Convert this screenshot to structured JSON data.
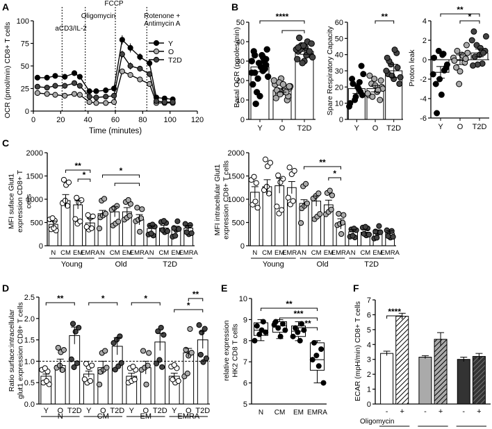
{
  "panel_labels": [
    "A",
    "B",
    "C",
    "D",
    "E",
    "F"
  ],
  "chart_data": [
    {
      "id": "A",
      "type": "line",
      "xlabel": "Time (minutes)",
      "ylabel": "OCR (pmol/min) CD8+ T cells",
      "xlim": [
        0,
        120
      ],
      "ylim": [
        0,
        100
      ],
      "xticks": [
        "0",
        "20",
        "40",
        "60",
        "80",
        "100",
        "120"
      ],
      "yticks": [
        "0",
        "25",
        "50",
        "75",
        "100"
      ],
      "injections": [
        {
          "x": 21,
          "label": "aCD3/IL-2"
        },
        {
          "x": 38,
          "label": "Oligomycin"
        },
        {
          "x": 60,
          "label": "FCCP"
        },
        {
          "x": 83,
          "label": "Rotenone + Antimycin A"
        }
      ],
      "x": [
        3,
        10,
        16,
        23,
        30,
        34,
        41,
        46,
        53,
        59,
        65,
        71,
        78,
        85,
        90,
        96,
        102
      ],
      "series": [
        {
          "name": "Y",
          "fill": "#000000",
          "values": [
            37,
            37,
            39,
            38,
            42,
            38,
            22,
            22,
            23,
            25,
            79,
            70,
            60,
            53,
            15,
            14,
            13
          ],
          "err": [
            3,
            3,
            3,
            3,
            3,
            3,
            2,
            2,
            2,
            2,
            5,
            5,
            4,
            4,
            2,
            2,
            2
          ]
        },
        {
          "name": "O",
          "fill": "#aaaaaa",
          "values": [
            20,
            19,
            18,
            17,
            19,
            18,
            10,
            9,
            9,
            10,
            44,
            40,
            35,
            30,
            9,
            9,
            9
          ],
          "err": [
            2,
            2,
            2,
            2,
            2,
            2,
            1,
            1,
            1,
            1,
            3,
            3,
            3,
            2,
            1,
            1,
            1
          ]
        },
        {
          "name": "T2D",
          "fill": "#444444",
          "values": [
            27,
            26,
            28,
            28,
            31,
            28,
            16,
            15,
            16,
            17,
            63,
            50,
            47,
            41,
            11,
            10,
            10
          ],
          "err": [
            3,
            3,
            3,
            3,
            3,
            3,
            2,
            2,
            2,
            2,
            4,
            4,
            3,
            3,
            2,
            2,
            2
          ]
        }
      ]
    },
    {
      "id": "B1",
      "type": "bar",
      "ylabel": "Basal OCR (pmoles/min)",
      "ylim": [
        0,
        50
      ],
      "yticks": [
        "0",
        "10",
        "20",
        "30",
        "40",
        "50"
      ],
      "categories": [
        "Y",
        "O",
        "T2D"
      ],
      "values": [
        27,
        15,
        35
      ],
      "err": [
        2.5,
        1,
        1.5
      ],
      "points": [
        [
          25,
          31,
          24,
          33,
          21,
          27,
          30,
          36,
          18,
          8,
          29,
          33,
          26,
          22,
          35,
          14,
          12,
          32,
          28,
          30,
          24
        ],
        [
          16,
          18,
          13,
          21,
          15,
          10,
          17,
          11,
          19,
          14,
          16,
          12,
          20,
          15,
          13,
          18,
          14,
          17
        ],
        [
          35,
          38,
          30,
          40,
          33,
          36,
          42,
          29,
          37,
          34,
          39,
          31,
          36,
          38,
          33,
          35,
          32,
          37
        ]
      ],
      "colors": [
        "#000000",
        "#aaaaaa",
        "#444444"
      ],
      "sig": [
        {
          "label": "****"
        },
        {
          "label": ""
        }
      ]
    },
    {
      "id": "B2",
      "type": "bar",
      "ylabel": "Spare Respiratory Capacity",
      "ylim": [
        0,
        60
      ],
      "yticks": [
        "0",
        "10",
        "20",
        "30",
        "40",
        "50",
        "60"
      ],
      "categories": [
        "Y",
        "O",
        "T2D"
      ],
      "values": [
        19,
        19,
        30
      ],
      "err": [
        3,
        2,
        4
      ],
      "points": [
        [
          23,
          15,
          8,
          25,
          12,
          20,
          17,
          28,
          10,
          22,
          14,
          19,
          33
        ],
        [
          20,
          15,
          22,
          25,
          17,
          12,
          19,
          27,
          14,
          21,
          18,
          24,
          16
        ],
        [
          28,
          34,
          25,
          41,
          22,
          30,
          36,
          27,
          43,
          32,
          26,
          38
        ]
      ],
      "colors": [
        "#000000",
        "#aaaaaa",
        "#444444"
      ],
      "sig": [
        {
          "label": "**"
        }
      ]
    },
    {
      "id": "B3",
      "type": "bar",
      "ylabel": "Proton leak",
      "ylim": [
        -6,
        4
      ],
      "yticks": [
        "-6",
        "-4",
        "-2",
        "0",
        "2",
        "4"
      ],
      "categories": [
        "Y",
        "O",
        "T2D"
      ],
      "values": [
        -1.3,
        0,
        0.7
      ],
      "err": [
        0.6,
        0.5,
        0.4
      ],
      "points": [
        [
          0.6,
          -0.8,
          -1.5,
          -2.5,
          0.9,
          -3.6,
          -1.1,
          -0.5,
          0.2,
          -5.5,
          -2.0,
          0.5
        ],
        [
          1.5,
          0.2,
          -0.8,
          -2.5,
          0.5,
          -0.3,
          0.7,
          -0.1,
          0.9,
          -1.2,
          0.4,
          0.1
        ],
        [
          2.9,
          1.5,
          0.5,
          -0.4,
          0.9,
          2.0,
          0.3,
          -0.5,
          1.2,
          0.7,
          2.4,
          -0.6
        ]
      ],
      "colors": [
        "#000000",
        "#aaaaaa",
        "#444444"
      ],
      "sig": [
        {
          "label": "**"
        },
        {
          "label": "*"
        }
      ]
    },
    {
      "id": "C1",
      "type": "bar",
      "ylabel": "MFI suface Glut1 expression CD8+ T cells",
      "ylim": [
        0,
        2000
      ],
      "yticks": [
        "0",
        "500",
        "1000",
        "1500",
        "2000"
      ],
      "categories": [
        "N",
        "CM",
        "EM",
        "EMRA",
        "N",
        "CM",
        "EM",
        "EMRA",
        "N",
        "CM",
        "EM",
        "EMRA"
      ],
      "groups": [
        "Young",
        "Old",
        "T2D"
      ],
      "values": [
        460,
        970,
        880,
        490,
        690,
        730,
        730,
        560,
        370,
        380,
        360,
        380
      ],
      "err": [
        70,
        130,
        90,
        100,
        70,
        110,
        90,
        110,
        60,
        60,
        60,
        60
      ],
      "colors": [
        "#ffffff",
        "#ffffff",
        "#ffffff",
        "#ffffff",
        "#aaaaaa",
        "#aaaaaa",
        "#aaaaaa",
        "#aaaaaa",
        "#444444",
        "#444444",
        "#444444",
        "#444444"
      ],
      "sig": [
        {
          "label": "**"
        },
        {
          "label": "*"
        },
        {
          "label": "*"
        },
        {
          "label": ""
        }
      ]
    },
    {
      "id": "C2",
      "type": "bar",
      "ylabel": "MFI intracellular Glut1 expression CD8+ T cells",
      "ylim": [
        0,
        2000
      ],
      "yticks": [
        "0",
        "500",
        "1000",
        "1500",
        "2000"
      ],
      "categories": [
        "N",
        "CM",
        "EM",
        "EMRA",
        "N",
        "CM",
        "EM",
        "EMRA",
        "N",
        "CM",
        "EM",
        "EMRA"
      ],
      "groups": [
        "Young",
        "Old",
        "T2D"
      ],
      "values": [
        1150,
        1270,
        1290,
        1250,
        910,
        960,
        880,
        470,
        300,
        290,
        290,
        270
      ],
      "err": [
        120,
        150,
        160,
        130,
        80,
        110,
        100,
        110,
        50,
        50,
        50,
        50
      ],
      "colors": [
        "#ffffff",
        "#ffffff",
        "#ffffff",
        "#ffffff",
        "#aaaaaa",
        "#aaaaaa",
        "#aaaaaa",
        "#aaaaaa",
        "#444444",
        "#444444",
        "#444444",
        "#444444"
      ],
      "sig": [
        {
          "label": "**"
        },
        {
          "label": "*"
        }
      ]
    },
    {
      "id": "D",
      "type": "bar",
      "ylabel": "Ratio surface:intracellular glut1 expression CD8+ T cells",
      "ylim": [
        0,
        2.5
      ],
      "yticks": [
        "0.0",
        "0.5",
        "1.0",
        "1.5",
        "2.0",
        "2.5"
      ],
      "reference_line": 1.0,
      "categories": [
        "Y",
        "O",
        "T2D",
        "Y",
        "O",
        "T2D",
        "Y",
        "O",
        "T2D",
        "Y",
        "O",
        "T2D"
      ],
      "groups": [
        "N",
        "CM",
        "EM",
        "EMRA"
      ],
      "values": [
        0.65,
        0.9,
        1.6,
        0.7,
        0.85,
        1.35,
        0.65,
        0.85,
        1.45,
        0.65,
        1.2,
        1.5
      ],
      "err": [
        0.05,
        0.15,
        0.2,
        0.07,
        0.15,
        0.2,
        0.07,
        0.15,
        0.2,
        0.07,
        0.1,
        0.2
      ],
      "colors": [
        "#ffffff",
        "#aaaaaa",
        "#444444",
        "#ffffff",
        "#aaaaaa",
        "#444444",
        "#ffffff",
        "#aaaaaa",
        "#444444",
        "#ffffff",
        "#aaaaaa",
        "#444444"
      ],
      "sig": [
        {
          "label": "**"
        },
        {
          "label": "*"
        },
        {
          "label": "*"
        },
        {
          "label": "*"
        },
        {
          "label": "**"
        }
      ]
    },
    {
      "id": "E",
      "type": "box",
      "ylabel": "relative expression HK2 CD8 T cells",
      "ylim": [
        5,
        10
      ],
      "yticks": [
        "5",
        "6",
        "7",
        "8",
        "9",
        "10"
      ],
      "categories": [
        "N",
        "CM",
        "EM",
        "EMRA"
      ],
      "box": [
        {
          "min": 8.0,
          "q1": 8.25,
          "median": 8.5,
          "q3": 8.85,
          "max": 9.0
        },
        {
          "min": 8.1,
          "q1": 8.4,
          "median": 8.7,
          "q3": 8.9,
          "max": 9.0
        },
        {
          "min": 8.0,
          "q1": 8.2,
          "median": 8.45,
          "q3": 8.7,
          "max": 8.9
        },
        {
          "min": 6.0,
          "q1": 6.6,
          "median": 7.1,
          "q3": 7.9,
          "max": 8.0
        }
      ],
      "points": [
        [
          8.9,
          8.4,
          8.0,
          8.7,
          8.3,
          8.5
        ],
        [
          8.9,
          8.6,
          8.2,
          8.8,
          8.5,
          8.75
        ],
        [
          8.8,
          8.5,
          8.2,
          8.6,
          8.4,
          8.0
        ],
        [
          7.9,
          7.3,
          6.8,
          7.6,
          6.0,
          7.1
        ]
      ],
      "sig": [
        {
          "label": "**"
        },
        {
          "label": "***"
        },
        {
          "label": "**"
        }
      ]
    },
    {
      "id": "F",
      "type": "bar",
      "ylabel": "ECAR (mpH/min) CD8+ T cells",
      "ylim": [
        0,
        7
      ],
      "yticks": [
        "0",
        "1",
        "2",
        "3",
        "4",
        "5",
        "6",
        "7"
      ],
      "categories": [
        "-",
        "+",
        "-",
        "+",
        "-",
        "+"
      ],
      "groups": [
        "Y",
        "O",
        "T2D"
      ],
      "condition_label": "Oligomycin",
      "values": [
        3.4,
        5.9,
        3.15,
        4.35,
        3.0,
        3.2
      ],
      "err": [
        0.15,
        0.2,
        0.1,
        0.45,
        0.15,
        0.2
      ],
      "colors": [
        "#ffffff",
        "#ffffff",
        "#aaaaaa",
        "#aaaaaa",
        "#333333",
        "#333333"
      ],
      "hatched": [
        false,
        true,
        false,
        true,
        false,
        true
      ],
      "sig": [
        {
          "label": "****"
        }
      ]
    }
  ]
}
